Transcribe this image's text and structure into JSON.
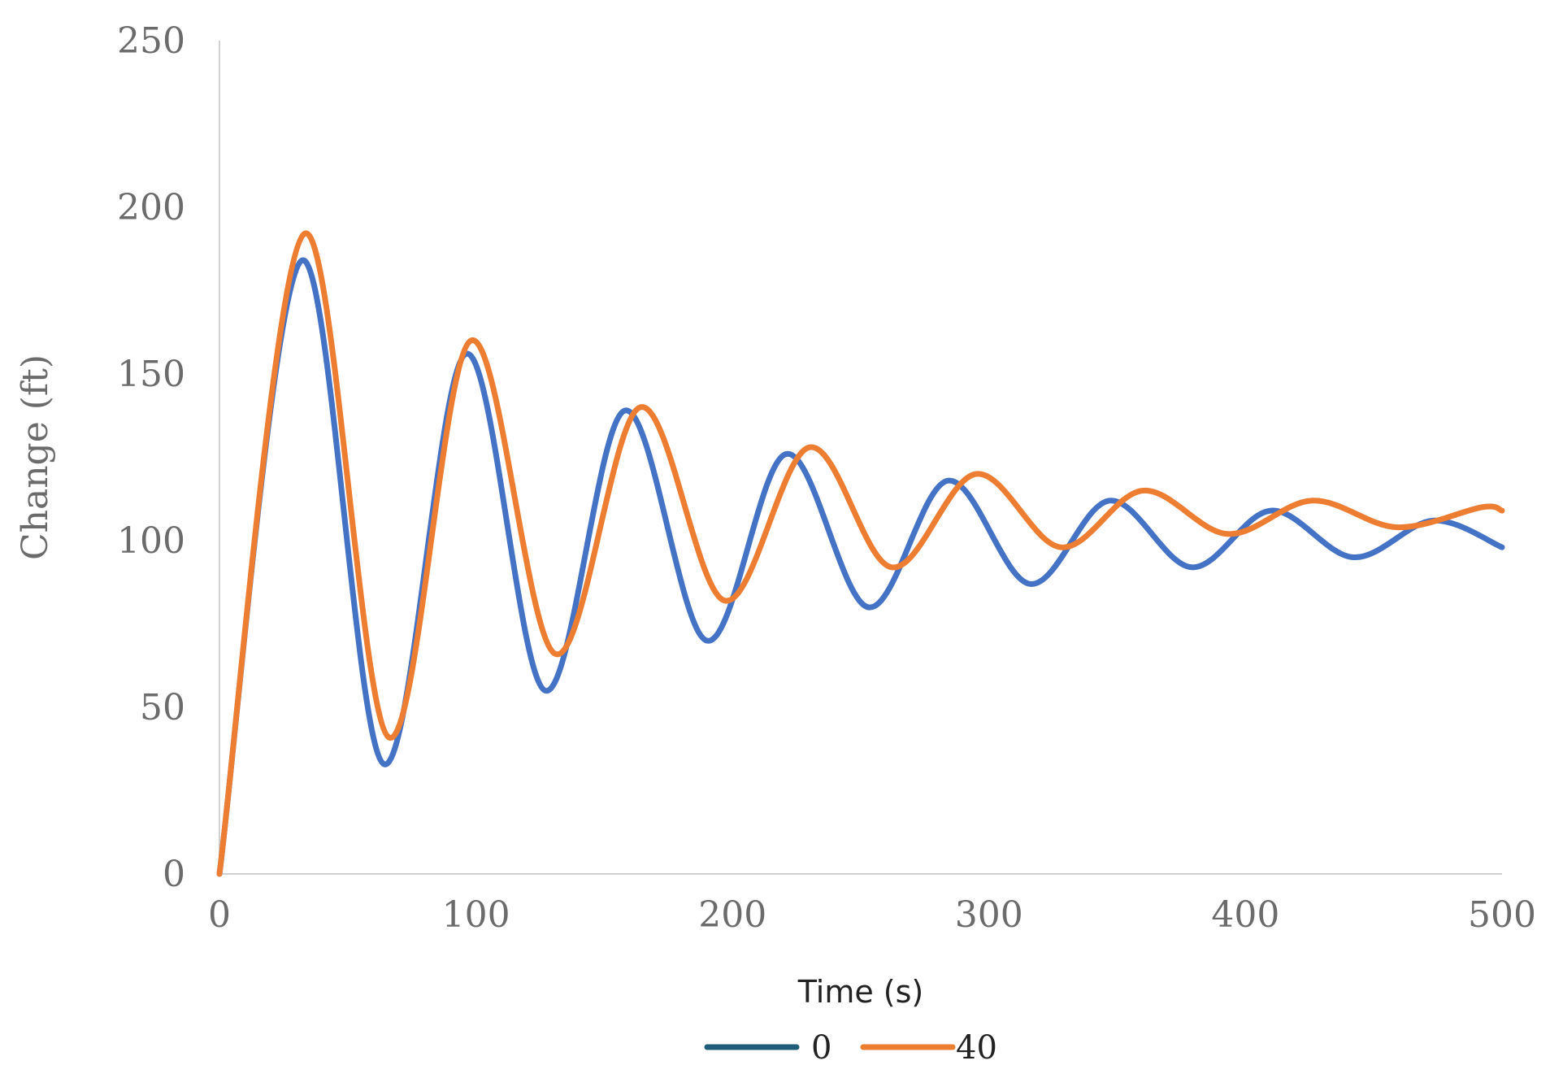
{
  "chart_data": {
    "type": "line",
    "xlabel": "Time (s)",
    "ylabel": "Change (ft)",
    "xlim": [
      0,
      500
    ],
    "ylim": [
      0,
      250
    ],
    "xticks": [
      "0",
      "100",
      "200",
      "300",
      "400",
      "500"
    ],
    "yticks": [
      "0",
      "50",
      "100",
      "150",
      "200",
      "250"
    ],
    "grid": false,
    "legend_position": "bottom",
    "series": [
      {
        "name": "0",
        "color": "#4472C4",
        "legend_color": "#1F5C7A",
        "x": [
          0,
          32,
          64,
          96,
          127,
          158,
          190,
          221,
          253,
          284,
          316,
          347,
          379,
          410,
          442,
          473,
          500
        ],
        "y": [
          0,
          184,
          33,
          156,
          55,
          139,
          70,
          126,
          80,
          118,
          87,
          112,
          92,
          109,
          95,
          106,
          98
        ]
      },
      {
        "name": "40",
        "color": "#ED7D31",
        "legend_color": "#ED7D31",
        "x": [
          0,
          33,
          66,
          98,
          131,
          164,
          197,
          230,
          262,
          295,
          328,
          360,
          393,
          426,
          459,
          492,
          500
        ],
        "y": [
          0,
          192,
          41,
          160,
          66,
          140,
          82,
          128,
          92,
          120,
          98,
          115,
          102,
          112,
          104,
          110,
          109
        ]
      }
    ]
  }
}
